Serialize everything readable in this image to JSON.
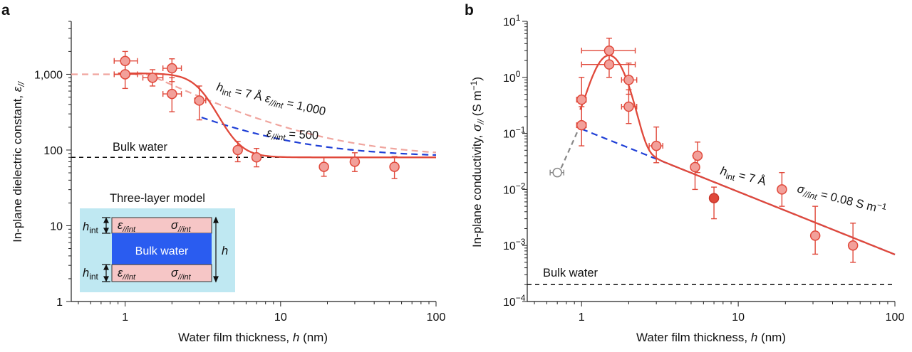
{
  "chart_data": [
    {
      "panel_label": "a",
      "type": "scatter",
      "x_scale": "log",
      "y_scale": "log",
      "xlim": [
        0.45,
        100
      ],
      "ylim": [
        1,
        5000
      ],
      "xlabel_parts": [
        "Water film thickness, ",
        "h",
        " (nm)"
      ],
      "ylabel_parts": [
        "In-plane dielectric constant, ",
        "ε",
        "//"
      ],
      "x_ticks": [
        1,
        10,
        100
      ],
      "x_tick_labels": [
        "1",
        "10",
        "100"
      ],
      "y_ticks": [
        1,
        10,
        100,
        1000
      ],
      "y_tick_labels": [
        "1",
        "10",
        "100",
        "1,000"
      ],
      "points": [
        {
          "x": 1.0,
          "y": 1500,
          "xerr": [
            0.85,
            1.2
          ],
          "yerr": [
            1100,
            2000
          ]
        },
        {
          "x": 1.0,
          "y": 1000,
          "xerr": [
            0.85,
            1.2
          ],
          "yerr": [
            650,
            1400
          ]
        },
        {
          "x": 1.5,
          "y": 900,
          "xerr": [
            1.3,
            1.75
          ],
          "yerr": [
            700,
            1150
          ]
        },
        {
          "x": 2.0,
          "y": 1200,
          "xerr": [
            1.75,
            2.3
          ],
          "yerr": [
            800,
            1600
          ]
        },
        {
          "x": 2.0,
          "y": 550,
          "xerr": [
            1.75,
            2.3
          ],
          "yerr": [
            320,
            900
          ]
        },
        {
          "x": 3.0,
          "y": 450,
          "xerr": [
            2.8,
            3.3
          ],
          "yerr": [
            250,
            700
          ]
        },
        {
          "x": 5.3,
          "y": 100,
          "xerr": [
            5.0,
            5.6
          ],
          "yerr": [
            70,
            130
          ]
        },
        {
          "x": 7.0,
          "y": 80,
          "xerr": [
            6.6,
            7.4
          ],
          "yerr": [
            60,
            105
          ]
        },
        {
          "x": 19,
          "y": 60,
          "xerr": [
            18,
            20
          ],
          "yerr": [
            45,
            80
          ]
        },
        {
          "x": 30,
          "y": 70,
          "xerr": [
            28.5,
            31.5
          ],
          "yerr": [
            52,
            92
          ]
        },
        {
          "x": 54,
          "y": 60,
          "xerr": [
            51,
            57
          ],
          "yerr": [
            42,
            82
          ]
        }
      ],
      "lines": [
        {
          "name": "three-layer fit",
          "style": "solid",
          "color": "#e0483a"
        },
        {
          "name": "ε//int = 1,000",
          "style": "dashed",
          "color": "#f0a59e"
        },
        {
          "name": "ε//int = 500",
          "style": "dashed",
          "color": "#1f3fd6"
        },
        {
          "name": "Bulk water",
          "style": "dashed",
          "color": "#111111",
          "y": 80
        }
      ],
      "bulk_label": "Bulk water",
      "annot1_parts": [
        "h",
        "int",
        " = 7 Å ",
        "ε",
        "//int",
        " = 1,000"
      ],
      "annot2_parts": [
        "ε",
        "//int",
        " = 500"
      ],
      "inset": {
        "title": "Three-layer model",
        "bulk_label": "Bulk water",
        "h_label": "h",
        "hint_main": "h",
        "hint_sub": "int",
        "eps_sym": "ε",
        "sigma_sym": "σ",
        "layer_sub": "//int",
        "bg_color": "#bfe8f2",
        "layer_color": "#f6c6c6",
        "bulk_color": "#2a5cf0"
      }
    },
    {
      "panel_label": "b",
      "type": "scatter",
      "x_scale": "log",
      "y_scale": "log",
      "xlim": [
        0.45,
        100
      ],
      "ylim": [
        0.0001,
        10
      ],
      "xlabel_parts": [
        "Water film thickness, ",
        "h",
        " (nm)"
      ],
      "ylabel_parts": [
        "In-plane conductivity, ",
        "σ",
        "//",
        " (S m",
        "−1",
        ")"
      ],
      "x_ticks": [
        1,
        10,
        100
      ],
      "x_tick_labels": [
        "1",
        "10",
        "100"
      ],
      "y_tick_base": "10",
      "y_tick_exponents": [
        "−4",
        "−3",
        "−2",
        "−1",
        "0",
        "1"
      ],
      "points": [
        {
          "x": 1.0,
          "y": 0.4,
          "xerr": [
            0.93,
            1.07
          ],
          "yerr": [
            0.15,
            1.0
          ]
        },
        {
          "x": 1.0,
          "y": 0.14,
          "xerr": [
            0.93,
            1.07
          ],
          "yerr": [
            0.06,
            0.3
          ]
        },
        {
          "x": 1.5,
          "y": 3.0,
          "xerr": [
            1.0,
            2.2
          ],
          "yerr": [
            1.8,
            5.0
          ]
        },
        {
          "x": 1.5,
          "y": 1.7,
          "xerr": [
            1.0,
            2.2
          ],
          "yerr": [
            1.0,
            3.0
          ]
        },
        {
          "x": 2.0,
          "y": 0.9,
          "xerr": [
            1.8,
            2.25
          ],
          "yerr": [
            0.5,
            1.8
          ]
        },
        {
          "x": 2.0,
          "y": 0.3,
          "xerr": [
            1.8,
            2.25
          ],
          "yerr": [
            0.15,
            0.6
          ]
        },
        {
          "x": 3.0,
          "y": 0.06,
          "xerr": [
            2.7,
            3.3
          ],
          "yerr": [
            0.03,
            0.13
          ]
        },
        {
          "x": 5.3,
          "y": 0.025,
          "xerr": [
            5.0,
            5.6
          ],
          "yerr": [
            0.01,
            0.04
          ]
        },
        {
          "x": 5.5,
          "y": 0.04,
          "xerr": [
            5.2,
            5.8
          ],
          "yerr": [
            0.02,
            0.07
          ]
        },
        {
          "x": 7.0,
          "y": 0.007,
          "xerr": [
            6.7,
            7.3
          ],
          "yerr": [
            0.003,
            0.011
          ],
          "filled": true
        },
        {
          "x": 19,
          "y": 0.01,
          "xerr": [
            18,
            20
          ],
          "yerr": [
            0.005,
            0.02
          ]
        },
        {
          "x": 31,
          "y": 0.0015,
          "xerr": [
            29.5,
            32.5
          ],
          "yerr": [
            0.0007,
            0.005
          ]
        },
        {
          "x": 54,
          "y": 0.001,
          "xerr": [
            51,
            57
          ],
          "yerr": [
            0.0005,
            0.0025
          ]
        }
      ],
      "grey_point": {
        "x": 0.7,
        "y": 0.02,
        "xerr": [
          0.63,
          0.77
        ]
      },
      "lines": [
        {
          "name": "three-layer fit",
          "style": "solid",
          "color": "#e0483a"
        },
        {
          "name": "σ//int = 0.08 S m−1",
          "style": "dashed",
          "color": "#1f3fd6"
        },
        {
          "name": "Bulk water",
          "style": "dashed",
          "color": "#111111",
          "y": 0.0002
        }
      ],
      "bulk_label": "Bulk water",
      "annot1_parts": [
        "h",
        "int",
        " = 7 Å"
      ],
      "annot2_parts": [
        "σ",
        "//int",
        " = 0.08 S m",
        "−1"
      ]
    }
  ]
}
